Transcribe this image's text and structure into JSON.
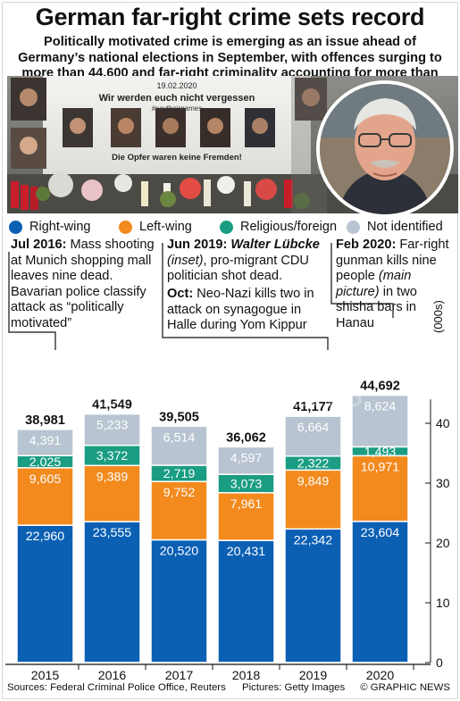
{
  "title": "German far-right crime sets record",
  "subtitle": "Politically motivated crime is emerging as an issue ahead of Germany’s national elections in September, with offences surging to more than 44,600 and far-right criminality accounting for more than half",
  "photo": {
    "banner_date": "19.02.2020",
    "banner_text": "Wir werden euch nicht vergessen",
    "banner_tag": "#saytheirnames",
    "lower_sign": "Die Opfer waren keine Fremden!"
  },
  "legend": [
    {
      "label": "Right-wing",
      "color": "#0b60b4"
    },
    {
      "label": "Left-wing",
      "color": "#f28a1e"
    },
    {
      "label": "Religious/foreign",
      "color": "#1a9d83"
    },
    {
      "label": "Not identified",
      "color": "#b8c4d1"
    }
  ],
  "annotations": {
    "a2016": {
      "date": "Jul 2016:",
      "text": " Mass shooting at Munich shopping mall leaves nine dead. Bavarian police classify attack as “politically motivated”"
    },
    "a2019": {
      "date": "Jun 2019:",
      "name": "Walter Lübcke",
      "inset": "(inset)",
      "text": ", pro-migrant CDU politician shot dead."
    },
    "aoct": {
      "date": "Oct:",
      "text": " Neo-Nazi kills two in attack on synagogue in Halle during Yom Kippur"
    },
    "a2020": {
      "date": "Feb 2020:",
      "text1": " Far-right gunman kills nine people ",
      "main": "(main picture)",
      "text2": " in two shisha bars in Hanau"
    }
  },
  "chart_data": {
    "type": "bar",
    "stacked": true,
    "categories": [
      "2015",
      "2016",
      "2017",
      "2018",
      "2019",
      "2020"
    ],
    "totals": [
      "38,981",
      "41,549",
      "39,505",
      "36,062",
      "41,177",
      "44,692"
    ],
    "series": [
      {
        "name": "Right-wing",
        "color": "#0b60b4",
        "values": [
          22960,
          23555,
          20520,
          20431,
          22342,
          23604
        ]
      },
      {
        "name": "Left-wing",
        "color": "#f28a1e",
        "values": [
          9605,
          9389,
          9752,
          7961,
          9849,
          10971
        ]
      },
      {
        "name": "Religious/foreign",
        "color": "#1a9d83",
        "values": [
          2025,
          3372,
          2719,
          3073,
          2322,
          1493
        ]
      },
      {
        "name": "Not identified",
        "color": "#b8c4d1",
        "values": [
          4391,
          5233,
          6514,
          4597,
          6664,
          8624
        ]
      }
    ],
    "ylabel": "(000s)",
    "yticks": [
      0,
      10,
      20,
      30,
      40
    ],
    "ylim": [
      0,
      50000
    ]
  },
  "watermark": "GRAPHIC NEWS",
  "footer": {
    "sources": "Sources: Federal Criminal Police Office, Reuters",
    "pictures": "Pictures: Getty Images",
    "copyright": "© GRAPHIC NEWS"
  }
}
